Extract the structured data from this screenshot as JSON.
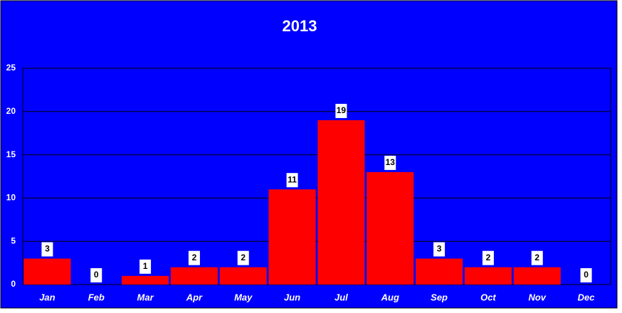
{
  "chart_data": {
    "type": "bar",
    "title": "2013",
    "categories": [
      "Jan",
      "Feb",
      "Mar",
      "Apr",
      "May",
      "Jun",
      "Jul",
      "Aug",
      "Sep",
      "Oct",
      "Nov",
      "Dec"
    ],
    "values": [
      3,
      0,
      1,
      2,
      2,
      11,
      19,
      13,
      3,
      2,
      2,
      0
    ],
    "color": "#ff0000",
    "ylim": [
      0,
      25
    ],
    "yticks": [
      0,
      5,
      10,
      15,
      20,
      25
    ],
    "grid": true
  }
}
